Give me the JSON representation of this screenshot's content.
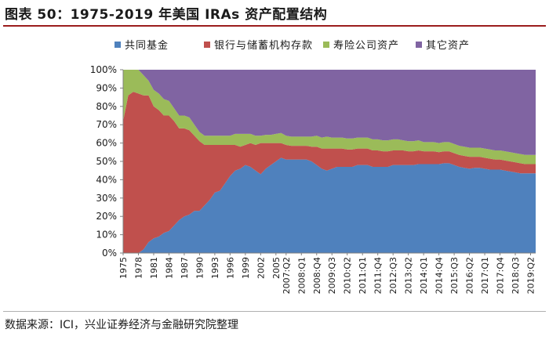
{
  "header": {
    "title": "图表 50：1975-2019 年美国 IRAs 资产配置结构"
  },
  "footer": {
    "source": "数据来源：ICI，兴业证券经济与金融研究院整理"
  },
  "chart_data": {
    "type": "area",
    "stacked": true,
    "title": "",
    "xlabel": "",
    "ylabel": "",
    "ylim": [
      0,
      100
    ],
    "y_ticks": [
      "0%",
      "10%",
      "20%",
      "30%",
      "40%",
      "50%",
      "60%",
      "70%",
      "80%",
      "90%",
      "100%"
    ],
    "legend_position": "top",
    "x_tick_labels": [
      "1975",
      "1978",
      "1981",
      "1984",
      "1987",
      "1990",
      "1993",
      "1996",
      "1999",
      "2002",
      "2005",
      "2007:Q2",
      "2008:Q1",
      "2008:Q4",
      "2009:Q3",
      "2010:Q2",
      "2011:Q1",
      "2011:Q4",
      "2012:Q3",
      "2013:Q2",
      "2014:Q1",
      "2014:Q4",
      "2015:Q3",
      "2016:Q2",
      "2017:Q1",
      "2017:Q4",
      "2018:Q3",
      "2019:Q2"
    ],
    "categories": [
      "1975",
      "1976",
      "1977",
      "1978",
      "1979",
      "1980",
      "1981",
      "1982",
      "1983",
      "1984",
      "1985",
      "1986",
      "1987",
      "1988",
      "1989",
      "1990",
      "1991",
      "1992",
      "1993",
      "1994",
      "1995",
      "1996",
      "1997",
      "1998",
      "1999",
      "2000",
      "2001",
      "2002",
      "2003",
      "2004",
      "2005",
      "2006",
      "2007:Q2",
      "2007:Q3",
      "2007:Q4",
      "2008:Q1",
      "2008:Q2",
      "2008:Q3",
      "2008:Q4",
      "2009:Q1",
      "2009:Q2",
      "2009:Q3",
      "2009:Q4",
      "2010:Q1",
      "2010:Q2",
      "2010:Q3",
      "2010:Q4",
      "2011:Q1",
      "2011:Q2",
      "2011:Q3",
      "2011:Q4",
      "2012:Q1",
      "2012:Q2",
      "2012:Q3",
      "2012:Q4",
      "2013:Q1",
      "2013:Q2",
      "2013:Q3",
      "2013:Q4",
      "2014:Q1",
      "2014:Q2",
      "2014:Q3",
      "2014:Q4",
      "2015:Q1",
      "2015:Q2",
      "2015:Q3",
      "2015:Q4",
      "2016:Q1",
      "2016:Q2",
      "2016:Q3",
      "2016:Q4",
      "2017:Q1",
      "2017:Q2",
      "2017:Q3",
      "2017:Q4",
      "2018:Q1",
      "2018:Q2",
      "2018:Q3",
      "2018:Q4",
      "2019:Q1",
      "2019:Q2",
      "2019:Q3"
    ],
    "series": [
      {
        "name": "共同基金",
        "color": "#4f81bd",
        "values": [
          0,
          0,
          0,
          0,
          2,
          6,
          8,
          9,
          11,
          12,
          15,
          18,
          20,
          21,
          23,
          23,
          26,
          29,
          33,
          34,
          38,
          42,
          45,
          46,
          48,
          47,
          45,
          43,
          46,
          48,
          50,
          52,
          51,
          51,
          51,
          51,
          51,
          50,
          48,
          46,
          45,
          46,
          47,
          47,
          47,
          47,
          48,
          48,
          48,
          47,
          47,
          47,
          47,
          48,
          48,
          48,
          48,
          48,
          48.5,
          48.5,
          48.5,
          48.5,
          48.5,
          49,
          49,
          48,
          47,
          46.5,
          46,
          46.5,
          46.5,
          46,
          45.5,
          45.5,
          45.5,
          45,
          44.5,
          44,
          43.5,
          43.5,
          43.5,
          43.5
        ]
      },
      {
        "name": "银行与储蓄机构存款",
        "color": "#c0504d",
        "values": [
          72,
          86,
          88,
          87,
          84,
          80,
          72,
          69,
          64,
          63,
          57,
          50,
          48,
          46,
          41,
          38,
          33,
          30,
          26,
          25,
          21,
          17,
          14,
          12,
          11,
          13,
          14,
          17,
          14,
          12,
          10,
          8,
          8,
          7.5,
          7.5,
          7.5,
          7.5,
          8,
          10,
          11,
          12,
          11,
          10,
          10,
          9.5,
          9.5,
          9,
          9,
          9,
          9,
          9,
          8.5,
          8.5,
          8,
          8,
          8,
          7.5,
          7.5,
          7.5,
          7,
          7,
          7,
          6.5,
          6.5,
          6.5,
          6.5,
          6.5,
          6.5,
          6.5,
          6,
          6,
          6,
          6,
          5.5,
          5.5,
          5.5,
          5.5,
          5.5,
          5.5,
          5,
          5,
          5
        ]
      },
      {
        "name": "寿险公司资产",
        "color": "#9bbb59",
        "values": [
          28,
          14,
          12,
          13,
          11,
          8,
          9,
          9,
          9,
          8,
          7,
          7,
          7,
          7,
          6,
          5,
          5,
          5,
          5,
          5,
          5,
          5,
          6,
          7,
          6,
          5,
          5,
          4,
          4.5,
          4.5,
          5,
          5.5,
          5,
          5,
          5,
          5,
          5,
          5.5,
          6,
          6,
          6.5,
          6,
          6,
          6,
          6,
          6,
          6,
          6,
          6,
          6,
          6,
          6,
          6,
          6,
          6,
          5.5,
          5.5,
          5.5,
          5.5,
          5,
          5,
          5,
          5,
          5,
          5,
          5,
          5,
          5,
          5,
          5,
          5,
          5,
          5,
          5,
          5,
          5,
          5,
          5,
          5,
          5,
          5,
          5
        ]
      },
      {
        "name": "其它资产",
        "color": "#8064a2",
        "values": [
          0,
          0,
          0,
          0,
          3,
          6,
          11,
          13,
          16,
          17,
          21,
          25,
          25,
          26,
          30,
          34,
          36,
          36,
          36,
          36,
          36,
          36,
          35,
          35,
          35,
          35,
          36,
          36,
          35.5,
          35.5,
          35,
          34.5,
          36,
          36.5,
          36.5,
          36.5,
          36.5,
          36.5,
          36,
          37,
          36.5,
          37,
          37,
          37,
          37.5,
          37.5,
          37,
          37,
          37,
          38,
          38,
          38.5,
          38.5,
          38,
          38,
          38.5,
          39,
          39,
          38.5,
          39.5,
          39.5,
          39.5,
          40,
          39.5,
          39.5,
          40.5,
          41.5,
          42,
          42.5,
          42.5,
          42.5,
          43,
          43.5,
          44,
          44,
          44.5,
          45,
          45.5,
          46,
          46.5,
          46.5,
          46.5
        ]
      }
    ]
  }
}
